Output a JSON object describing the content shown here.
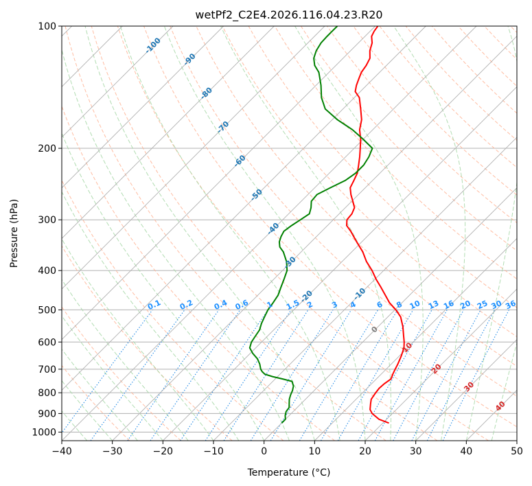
{
  "chart_data": {
    "type": "line",
    "title": "wetPf2_C2E4.2026.116.04.23.R20",
    "xlabel": "Temperature (°C)",
    "ylabel": "Pressure (hPa)",
    "xlim": [
      -40,
      50
    ],
    "ylim": [
      1050,
      100
    ],
    "y_scale": "log",
    "grid": true,
    "x_ticks": [
      "−40",
      "−30",
      "−20",
      "−10",
      "0",
      "10",
      "20",
      "30",
      "40",
      "50"
    ],
    "x_tick_values": [
      -40,
      -30,
      -20,
      -10,
      0,
      10,
      20,
      30,
      40,
      50
    ],
    "y_ticks": [
      "100",
      "200",
      "300",
      "400",
      "500",
      "600",
      "700",
      "800",
      "900",
      "1000"
    ],
    "y_tick_values": [
      100,
      200,
      300,
      400,
      500,
      600,
      700,
      800,
      900,
      1000
    ],
    "skew_degrees": 45,
    "colors": {
      "temperature": "#ff0000",
      "dewpoint": "#008000",
      "isotherm": "#b0b0b0",
      "dry_adiabat": "#ffb090",
      "moist_adiabat": "#a8d8a8",
      "mixing_ratio": "#1e88e5",
      "isotherm_label": "#1f77b4",
      "hot_label": "#d62728",
      "zero_label": "#808080",
      "mixing_label": "#1e90ff"
    },
    "series": [
      {
        "name": "Temperature",
        "color": "#ff0000",
        "points": [
          [
            950,
            21.2
          ],
          [
            930,
            18.5
          ],
          [
            900,
            16.0
          ],
          [
            880,
            14.8
          ],
          [
            850,
            13.7
          ],
          [
            830,
            13.0
          ],
          [
            800,
            12.6
          ],
          [
            780,
            12.4
          ],
          [
            760,
            12.5
          ],
          [
            740,
            12.9
          ],
          [
            720,
            12.3
          ],
          [
            700,
            11.8
          ],
          [
            680,
            11.3
          ],
          [
            650,
            10.4
          ],
          [
            620,
            9.3
          ],
          [
            600,
            8.2
          ],
          [
            580,
            6.9
          ],
          [
            550,
            4.9
          ],
          [
            520,
            2.5
          ],
          [
            500,
            0.2
          ],
          [
            480,
            -2.5
          ],
          [
            460,
            -4.8
          ],
          [
            440,
            -7.2
          ],
          [
            420,
            -9.8
          ],
          [
            400,
            -12.3
          ],
          [
            380,
            -15.2
          ],
          [
            360,
            -17.8
          ],
          [
            340,
            -21.0
          ],
          [
            320,
            -24.3
          ],
          [
            310,
            -26.2
          ],
          [
            300,
            -27.3
          ],
          [
            290,
            -27.5
          ],
          [
            280,
            -28.2
          ],
          [
            270,
            -29.8
          ],
          [
            260,
            -31.5
          ],
          [
            250,
            -33.0
          ],
          [
            240,
            -33.7
          ],
          [
            230,
            -34.5
          ],
          [
            220,
            -35.8
          ],
          [
            210,
            -37.2
          ],
          [
            200,
            -38.8
          ],
          [
            190,
            -40.5
          ],
          [
            180,
            -42.6
          ],
          [
            170,
            -44.2
          ],
          [
            160,
            -46.5
          ],
          [
            150,
            -49.0
          ],
          [
            145,
            -51.0
          ],
          [
            140,
            -52.0
          ],
          [
            135,
            -52.8
          ],
          [
            130,
            -53.6
          ],
          [
            125,
            -54.0
          ],
          [
            120,
            -54.7
          ],
          [
            115,
            -56.2
          ],
          [
            110,
            -57.3
          ],
          [
            106,
            -58.7
          ],
          [
            103,
            -59.2
          ],
          [
            100,
            -59.5
          ]
        ]
      },
      {
        "name": "Dewpoint",
        "color": "#008000",
        "points": [
          [
            950,
            0.0
          ],
          [
            930,
            0.0
          ],
          [
            910,
            -0.8
          ],
          [
            890,
            -1.4
          ],
          [
            870,
            -1.6
          ],
          [
            850,
            -2.4
          ],
          [
            830,
            -3.2
          ],
          [
            810,
            -3.8
          ],
          [
            790,
            -4.3
          ],
          [
            770,
            -5.0
          ],
          [
            750,
            -6.2
          ],
          [
            740,
            -8.5
          ],
          [
            730,
            -11.0
          ],
          [
            720,
            -13.0
          ],
          [
            710,
            -14.0
          ],
          [
            700,
            -14.8
          ],
          [
            680,
            -16.0
          ],
          [
            660,
            -17.5
          ],
          [
            640,
            -19.5
          ],
          [
            620,
            -21.2
          ],
          [
            600,
            -22.0
          ],
          [
            580,
            -22.4
          ],
          [
            560,
            -22.8
          ],
          [
            540,
            -23.7
          ],
          [
            520,
            -24.4
          ],
          [
            500,
            -25.1
          ],
          [
            480,
            -25.5
          ],
          [
            460,
            -26.0
          ],
          [
            440,
            -27.0
          ],
          [
            420,
            -28.0
          ],
          [
            400,
            -29.1
          ],
          [
            380,
            -31.0
          ],
          [
            360,
            -33.5
          ],
          [
            350,
            -35.2
          ],
          [
            340,
            -36.3
          ],
          [
            330,
            -37.0
          ],
          [
            320,
            -37.5
          ],
          [
            310,
            -37.1
          ],
          [
            300,
            -36.5
          ],
          [
            290,
            -35.9
          ],
          [
            280,
            -36.8
          ],
          [
            270,
            -38.0
          ],
          [
            260,
            -38.2
          ],
          [
            250,
            -36.9
          ],
          [
            240,
            -35.4
          ],
          [
            230,
            -34.8
          ],
          [
            220,
            -34.8
          ],
          [
            210,
            -35.4
          ],
          [
            200,
            -36.4
          ],
          [
            190,
            -40.0
          ],
          [
            180,
            -44.0
          ],
          [
            170,
            -49.0
          ],
          [
            160,
            -53.5
          ],
          [
            150,
            -56.5
          ],
          [
            140,
            -59.0
          ],
          [
            130,
            -62.0
          ],
          [
            125,
            -64.2
          ],
          [
            120,
            -65.8
          ],
          [
            115,
            -66.8
          ],
          [
            110,
            -67.4
          ],
          [
            106,
            -67.5
          ],
          [
            103,
            -67.5
          ],
          [
            100,
            -67.5
          ]
        ]
      }
    ],
    "isotherm_labels": [
      {
        "value": -100,
        "text": "-100"
      },
      {
        "value": -90,
        "text": "-90"
      },
      {
        "value": -80,
        "text": "-80"
      },
      {
        "value": -70,
        "text": "-70"
      },
      {
        "value": -60,
        "text": "-60"
      },
      {
        "value": -50,
        "text": "-50"
      },
      {
        "value": -40,
        "text": "-40"
      },
      {
        "value": -30,
        "text": "-30"
      },
      {
        "value": -20,
        "text": "-20"
      },
      {
        "value": -10,
        "text": "-10"
      },
      {
        "value": 0,
        "text": "0"
      },
      {
        "value": 10,
        "text": "10"
      },
      {
        "value": 20,
        "text": "20"
      },
      {
        "value": 30,
        "text": "30"
      },
      {
        "value": 40,
        "text": "40"
      }
    ],
    "mixing_ratio_labels": [
      "0.1",
      "0.2",
      "0.4",
      "0.6",
      "1",
      "1.5",
      "2",
      "3",
      "4",
      "6",
      "8",
      "10",
      "13",
      "16",
      "20",
      "25",
      "30",
      "36"
    ],
    "mixing_ratio_values": [
      0.1,
      0.2,
      0.4,
      0.6,
      1,
      1.5,
      2,
      3,
      4,
      6,
      8,
      10,
      13,
      16,
      20,
      25,
      30,
      36
    ]
  }
}
